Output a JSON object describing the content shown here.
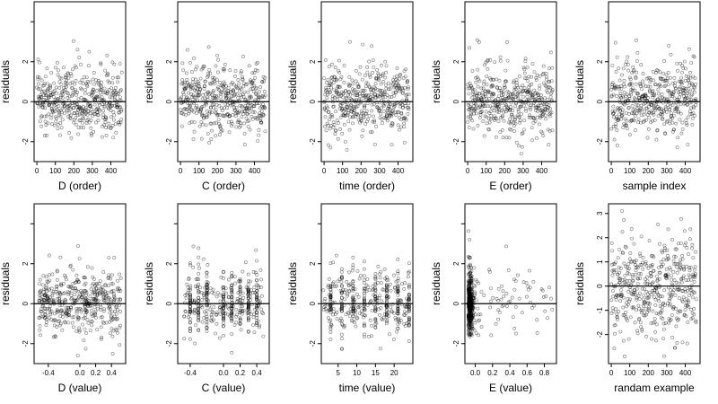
{
  "chart_data": [
    {
      "type": "scatter",
      "xlabel": "D (order)",
      "ylabel": "residuals",
      "xlim": [
        -15,
        480
      ],
      "ylim": [
        -3,
        5
      ],
      "xticks": [
        0,
        100,
        200,
        300,
        400
      ],
      "yticks": [
        -2,
        0,
        2,
        4
      ],
      "ytick_labels": [
        "-2",
        "0",
        "2",
        ""
      ],
      "hline": 0,
      "gen": {
        "kind": "order",
        "seed": 11
      }
    },
    {
      "type": "scatter",
      "xlabel": "C (order)",
      "ylabel": "residuals",
      "xlim": [
        -15,
        480
      ],
      "ylim": [
        -3,
        5
      ],
      "xticks": [
        0,
        100,
        200,
        300,
        400
      ],
      "yticks": [
        -2,
        0,
        2,
        4
      ],
      "ytick_labels": [
        "-2",
        "0",
        "2",
        ""
      ],
      "hline": 0,
      "gen": {
        "kind": "order",
        "seed": 12
      }
    },
    {
      "type": "scatter",
      "xlabel": "time (order)",
      "ylabel": "residuals",
      "xlim": [
        -15,
        480
      ],
      "ylim": [
        -3,
        5
      ],
      "xticks": [
        0,
        100,
        200,
        300,
        400
      ],
      "yticks": [
        -2,
        0,
        2,
        4
      ],
      "ytick_labels": [
        "-2",
        "0",
        "2",
        ""
      ],
      "hline": 0,
      "gen": {
        "kind": "order",
        "seed": 13
      }
    },
    {
      "type": "scatter",
      "xlabel": "E (order)",
      "ylabel": "residuals",
      "xlim": [
        -15,
        480
      ],
      "ylim": [
        -3,
        5
      ],
      "xticks": [
        0,
        100,
        200,
        300,
        400
      ],
      "yticks": [
        -2,
        0,
        2,
        4
      ],
      "ytick_labels": [
        "-2",
        "0",
        "2",
        ""
      ],
      "hline": 0,
      "gen": {
        "kind": "order",
        "seed": 14
      }
    },
    {
      "type": "scatter",
      "xlabel": "sample index",
      "ylabel": "residuals",
      "xlim": [
        -15,
        480
      ],
      "ylim": [
        -3,
        5
      ],
      "xticks": [
        0,
        100,
        200,
        300,
        400
      ],
      "yticks": [
        -2,
        0,
        2,
        4
      ],
      "ytick_labels": [
        "-2",
        "0",
        "2",
        ""
      ],
      "hline": 0,
      "gen": {
        "kind": "order",
        "seed": 15
      }
    },
    {
      "type": "scatter",
      "xlabel": "D (value)",
      "ylabel": "residuals",
      "xlim": [
        -0.58,
        0.58
      ],
      "ylim": [
        -3,
        5
      ],
      "xticks": [
        -0.4,
        0,
        0.2,
        0.4
      ],
      "xtick_labels": [
        "-0.4",
        "0.0",
        "0.2",
        "0.4"
      ],
      "yticks": [
        -2,
        0,
        2,
        4
      ],
      "ytick_labels": [
        "-2",
        "0",
        "2",
        ""
      ],
      "hline": 0,
      "gen": {
        "kind": "value",
        "seed": 21,
        "lo": -0.52,
        "hi": 0.52
      }
    },
    {
      "type": "scatter",
      "xlabel": "C (value)",
      "ylabel": "residuals",
      "xlim": [
        -0.55,
        0.55
      ],
      "ylim": [
        -3,
        5
      ],
      "xticks": [
        -0.4,
        0,
        0.2,
        0.4
      ],
      "xtick_labels": [
        "-0.4",
        "0.0",
        "0.2",
        "0.4"
      ],
      "yticks": [
        -2,
        0,
        2,
        4
      ],
      "ytick_labels": [
        "-2",
        "0",
        "2",
        ""
      ],
      "hline": 0,
      "gen": {
        "kind": "value",
        "seed": 22,
        "lo": -0.48,
        "hi": 0.48,
        "columns": [
          -0.4,
          -0.3,
          -0.2,
          0,
          0.1,
          0.2,
          0.3,
          0.4
        ]
      }
    },
    {
      "type": "scatter",
      "xlabel": "time (value)",
      "ylabel": "residuals",
      "xlim": [
        0.5,
        25
      ],
      "ylim": [
        -3,
        5
      ],
      "xticks": [
        5,
        10,
        15,
        20
      ],
      "xtick_labels": [
        "5",
        "10",
        "15",
        "20"
      ],
      "yticks": [
        -2,
        0,
        2,
        4
      ],
      "ytick_labels": [
        "-2",
        "0",
        "2",
        ""
      ],
      "hline": 0,
      "gen": {
        "kind": "value",
        "seed": 23,
        "lo": 1,
        "hi": 24,
        "columns": [
          3,
          6,
          9,
          12,
          15,
          18,
          21,
          24
        ]
      }
    },
    {
      "type": "scatter",
      "xlabel": "E (value)",
      "ylabel": "residuals",
      "xlim": [
        -0.12,
        0.94
      ],
      "ylim": [
        -3,
        5
      ],
      "xticks": [
        0,
        0.2,
        0.4,
        0.6,
        0.8
      ],
      "xtick_labels": [
        "0.0",
        "0.2",
        "0.4",
        "0.6",
        "0.8"
      ],
      "yticks": [
        -2,
        0,
        2,
        4
      ],
      "ytick_labels": [
        "-2",
        "0",
        "2",
        ""
      ],
      "hline": 0,
      "gen": {
        "kind": "skew",
        "seed": 24
      }
    },
    {
      "type": "scatter",
      "xlabel": "randam example",
      "ylabel": "residuals",
      "xlim": [
        -15,
        480
      ],
      "ylim": [
        -3.2,
        3.4
      ],
      "xticks": [
        0,
        100,
        200,
        300,
        400
      ],
      "yticks": [
        -2,
        -1,
        0,
        1,
        2,
        3
      ],
      "ytick_labels": [
        "-2",
        "-1",
        "0",
        "1",
        "2",
        "3"
      ],
      "hline": 0,
      "gen": {
        "kind": "random",
        "seed": 25
      }
    }
  ]
}
